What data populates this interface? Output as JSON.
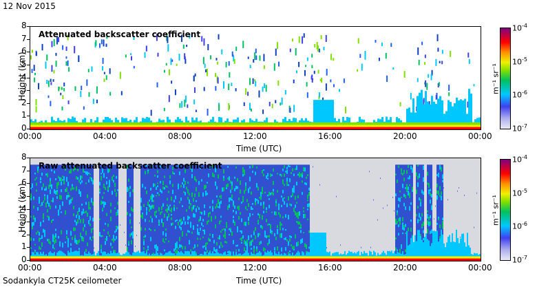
{
  "header": {
    "date": "12 Nov 2015"
  },
  "footer": {
    "site": "Sodankyla CT25K ceilometer"
  },
  "colorbar": {
    "ticks": [
      "10",
      "10",
      "10",
      "10"
    ],
    "exponents": [
      "-4",
      "-5",
      "-6",
      "-7"
    ],
    "unit": "m⁻¹ sr⁻¹"
  },
  "chart_data": [
    {
      "type": "heatmap",
      "title": "Attenuated backscatter coefficient",
      "xlabel": "Time (UTC)",
      "ylabel": "Height (km)",
      "x_ticks": [
        "00:00",
        "04:00",
        "08:00",
        "12:00",
        "16:00",
        "20:00",
        "00:00"
      ],
      "y_ticks": [
        "0",
        "1",
        "2",
        "3",
        "4",
        "5",
        "6",
        "7",
        "8"
      ],
      "xlim_hours": [
        0,
        24
      ],
      "ylim_km": [
        0,
        8
      ],
      "colorbar_range": [
        "1e-7",
        "1e-4"
      ],
      "colors": {
        "low": "#b0b0f0",
        "mid": "#00c060",
        "high": "#ff0000"
      }
    },
    {
      "type": "heatmap",
      "title": "Raw attenuated backscatter coefficient",
      "xlabel": "Time (UTC)",
      "ylabel": "Height (km)",
      "x_ticks": [
        "00:00",
        "04:00",
        "08:00",
        "12:00",
        "16:00",
        "20:00",
        "00:00"
      ],
      "y_ticks": [
        "0",
        "1",
        "2",
        "3",
        "4",
        "5",
        "6",
        "7",
        "8"
      ],
      "xlim_hours": [
        0,
        24
      ],
      "ylim_km": [
        0,
        8
      ],
      "colorbar_range": [
        "1e-7",
        "1e-4"
      ],
      "colors": {
        "low": "#d9d9e0",
        "mid": "#3050d0",
        "high": "#ff0000"
      }
    }
  ]
}
